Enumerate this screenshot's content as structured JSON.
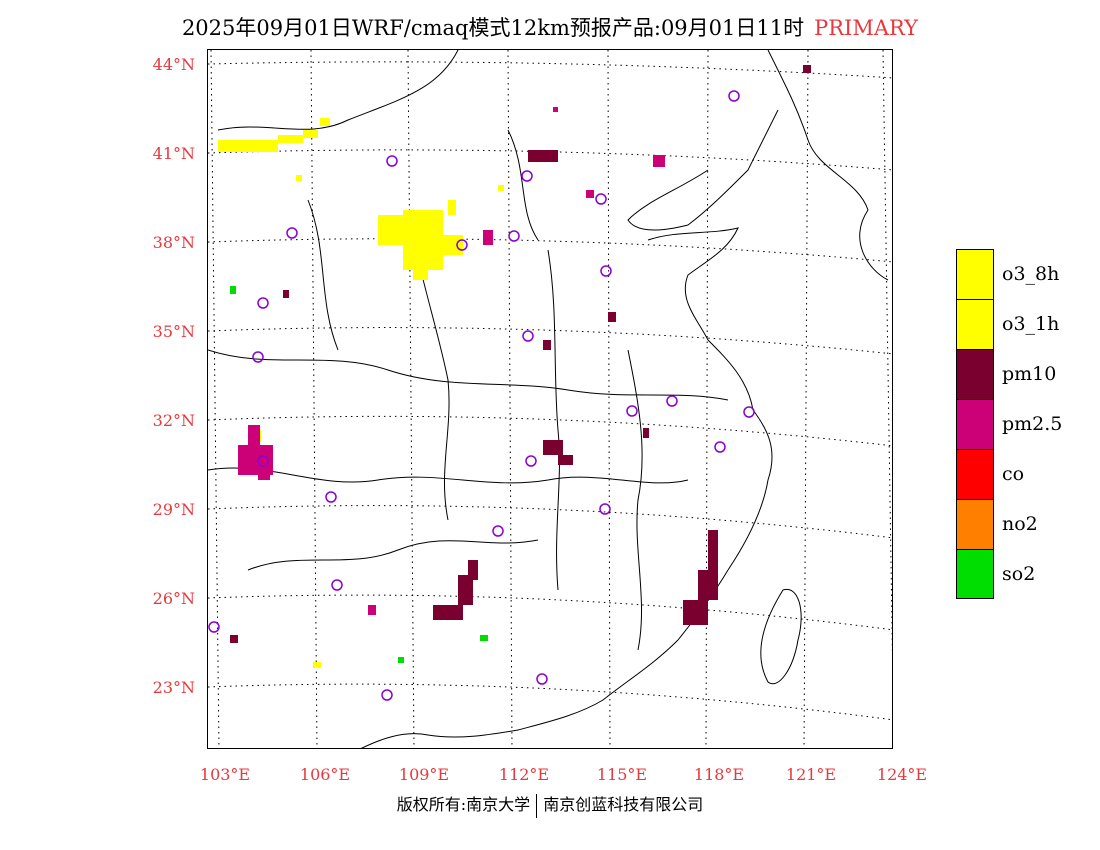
{
  "title": {
    "main": "2025年09月01日WRF/cmaq模式12km预报产品:09月01日11时",
    "tag": "PRIMARY"
  },
  "axes": {
    "lat_labels": [
      "44°N",
      "41°N",
      "38°N",
      "35°N",
      "32°N",
      "29°N",
      "26°N",
      "23°N"
    ],
    "lon_labels": [
      "103°E",
      "106°E",
      "109°E",
      "112°E",
      "115°E",
      "118°E",
      "121°E",
      "124°E"
    ]
  },
  "legend": [
    {
      "label": "o3_8h",
      "color": "#ffff00"
    },
    {
      "label": "o3_1h",
      "color": "#ffff00"
    },
    {
      "label": "pm10",
      "color": "#7a0030"
    },
    {
      "label": "pm2.5",
      "color": "#cc0077"
    },
    {
      "label": "co",
      "color": "#ff0000"
    },
    {
      "label": "no2",
      "color": "#ff7f00"
    },
    {
      "label": "so2",
      "color": "#00dd00"
    }
  ],
  "footer": {
    "left": "版权所有:南京大学",
    "right": "南京创蓝科技有限公司"
  },
  "colors": {
    "label_red": "#e8383d",
    "marker_purple": "#8a00d4"
  }
}
